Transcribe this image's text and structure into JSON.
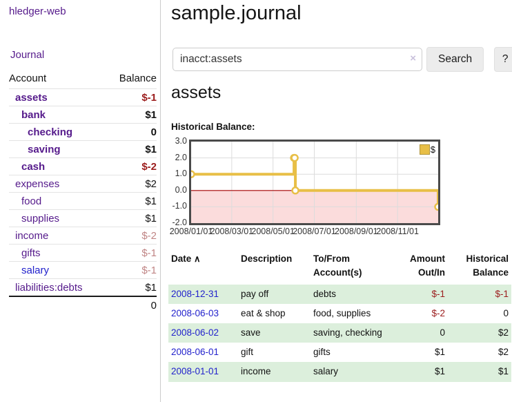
{
  "app": {
    "brand": "hledger-web"
  },
  "nav": {
    "journal": "Journal"
  },
  "sidebar": {
    "accounts_header": {
      "account": "Account",
      "balance": "Balance"
    },
    "accounts": [
      {
        "name": "assets",
        "balance": "$-1",
        "depth": 1,
        "bold": true,
        "balance_class": "negative",
        "link_class": ""
      },
      {
        "name": "bank",
        "balance": "$1",
        "depth": 2,
        "bold": true,
        "balance_class": "",
        "link_class": ""
      },
      {
        "name": "checking",
        "balance": "0",
        "depth": 3,
        "bold": true,
        "balance_class": "",
        "link_class": ""
      },
      {
        "name": "saving",
        "balance": "$1",
        "depth": 3,
        "bold": true,
        "balance_class": "",
        "link_class": ""
      },
      {
        "name": "cash",
        "balance": "$-2",
        "depth": 2,
        "bold": true,
        "balance_class": "negative",
        "link_class": ""
      },
      {
        "name": "expenses",
        "balance": "$2",
        "depth": 1,
        "bold": false,
        "balance_class": "",
        "link_class": ""
      },
      {
        "name": "food",
        "balance": "$1",
        "depth": 2,
        "bold": false,
        "balance_class": "",
        "link_class": ""
      },
      {
        "name": "supplies",
        "balance": "$1",
        "depth": 2,
        "bold": false,
        "balance_class": "",
        "link_class": ""
      },
      {
        "name": "income",
        "balance": "$-2",
        "depth": 1,
        "bold": false,
        "balance_class": "muted",
        "link_class": ""
      },
      {
        "name": "gifts",
        "balance": "$-1",
        "depth": 2,
        "bold": false,
        "balance_class": "muted",
        "link_class": ""
      },
      {
        "name": "salary",
        "balance": "$-1",
        "depth": 2,
        "bold": false,
        "balance_class": "muted",
        "link_class": "blue"
      },
      {
        "name": "liabilities:debts",
        "balance": "$1",
        "depth": 1,
        "bold": false,
        "balance_class": "",
        "link_class": ""
      }
    ],
    "total": "0"
  },
  "header": {
    "title": "sample.journal"
  },
  "search": {
    "value": "inacct:assets",
    "clear_icon": "×",
    "search_button": "Search",
    "help_button": "?"
  },
  "account_view": {
    "heading": "assets",
    "chart_title": "Historical Balance:"
  },
  "chart_data": {
    "type": "line",
    "step": true,
    "series": [
      {
        "name": "$",
        "points": [
          [
            "2008-01-01",
            1
          ],
          [
            "2008-06-01",
            2
          ],
          [
            "2008-06-02",
            2
          ],
          [
            "2008-06-03",
            0
          ],
          [
            "2008-12-31",
            -1
          ]
        ]
      }
    ],
    "x_range": [
      "2008-01-01",
      "2008-12-31"
    ],
    "ylim": [
      -2,
      3
    ],
    "yticks": [
      "3.0",
      "2.0",
      "1.0",
      "0.0",
      "-1.0",
      "-2.0"
    ],
    "xticks": [
      "2008/01/01",
      "2008/03/01",
      "2008/05/01",
      "2008/07/01",
      "2008/09/01",
      "2008/11/01"
    ],
    "legend": "$",
    "legend_position": "top-right",
    "grid": true,
    "colors": {
      "line": "#e8bf47",
      "marker_fill": "#ffffff",
      "negative_region": "#fbdcdc",
      "zero_line": "#a40000",
      "gridline": "#dcdcdc",
      "plot_border": "#4a4a4a"
    }
  },
  "register": {
    "headers": {
      "date": "Date",
      "sort_icon": "∧",
      "description": "Description",
      "account_line1": "To/From",
      "account_line2": "Account(s)",
      "amount_line1": "Amount",
      "amount_line2": "Out/In",
      "balance_line1": "Historical",
      "balance_line2": "Balance"
    },
    "rows": [
      {
        "date": "2008-12-31",
        "description": "pay off",
        "accounts": "debts",
        "amount": "$-1",
        "amount_negative": true,
        "balance": "$-1",
        "balance_negative": true
      },
      {
        "date": "2008-06-03",
        "description": "eat & shop",
        "accounts": "food, supplies",
        "amount": "$-2",
        "amount_negative": true,
        "balance": "0",
        "balance_negative": false
      },
      {
        "date": "2008-06-02",
        "description": "save",
        "accounts": "saving, checking",
        "amount": "0",
        "amount_negative": false,
        "balance": "$2",
        "balance_negative": false
      },
      {
        "date": "2008-06-01",
        "description": "gift",
        "accounts": "gifts",
        "amount": "$1",
        "amount_negative": false,
        "balance": "$2",
        "balance_negative": false
      },
      {
        "date": "2008-01-01",
        "description": "income",
        "accounts": "salary",
        "amount": "$1",
        "amount_negative": false,
        "balance": "$1",
        "balance_negative": false
      }
    ]
  },
  "colors": {
    "link_purple": "#551a8b",
    "link_blue": "#2222cc",
    "negative": "#9b1c1c",
    "muted_negative": "#c08585",
    "row_stripe_green": "#dcefdc"
  }
}
